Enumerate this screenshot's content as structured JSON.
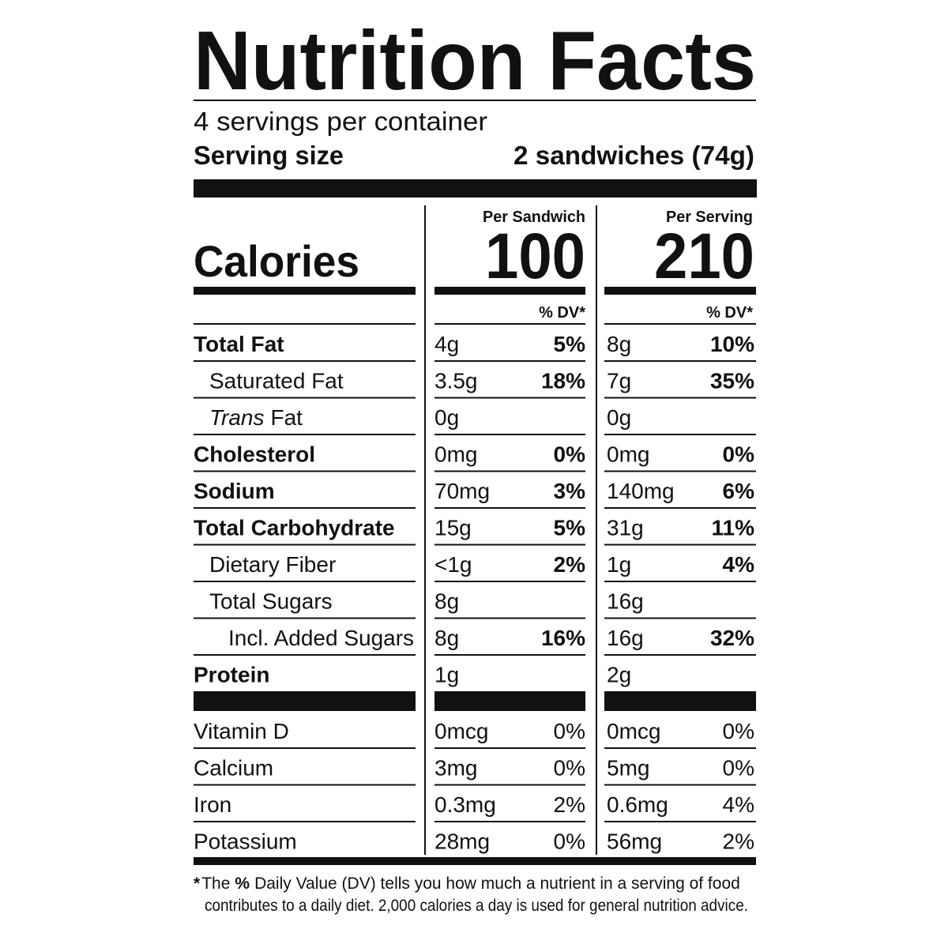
{
  "title": "Nutrition Facts",
  "servings_per_container": "4 servings per container",
  "serving_size": {
    "label": "Serving size",
    "value": "2 sandwiches (74g)"
  },
  "calories": {
    "label": "Calories",
    "columns": [
      {
        "header": "Per Sandwich",
        "value": 100
      },
      {
        "header": "Per Serving",
        "value": 210
      }
    ]
  },
  "dv_header": [
    "% DV*",
    "% DV*"
  ],
  "nutrients": [
    {
      "name": "Total Fat",
      "bold": true,
      "indent": 0,
      "columns": [
        {
          "amount": "4g",
          "dv": "5%"
        },
        {
          "amount": "8g",
          "dv": "10%"
        }
      ]
    },
    {
      "name": "Saturated Fat",
      "bold": false,
      "indent": 1,
      "columns": [
        {
          "amount": "3.5g",
          "dv": "18%"
        },
        {
          "amount": "7g",
          "dv": "35%"
        }
      ]
    },
    {
      "name_italic": "Trans",
      "name": "Fat",
      "bold": false,
      "indent": 1,
      "columns": [
        {
          "amount": "0g"
        },
        {
          "amount": "0g"
        }
      ]
    },
    {
      "name": "Cholesterol",
      "bold": true,
      "indent": 0,
      "columns": [
        {
          "amount": "0mg",
          "dv": "0%"
        },
        {
          "amount": "0mg",
          "dv": "0%"
        }
      ]
    },
    {
      "name": "Sodium",
      "bold": true,
      "indent": 0,
      "columns": [
        {
          "amount": "70mg",
          "dv": "3%"
        },
        {
          "amount": "140mg",
          "dv": "6%"
        }
      ]
    },
    {
      "name": "Total Carbohydrate",
      "bold": true,
      "indent": 0,
      "columns": [
        {
          "amount": "15g",
          "dv": "5%"
        },
        {
          "amount": "31g",
          "dv": "11%"
        }
      ]
    },
    {
      "name": "Dietary Fiber",
      "bold": false,
      "indent": 1,
      "columns": [
        {
          "amount": "<1g",
          "dv": "2%"
        },
        {
          "amount": "1g",
          "dv": "4%"
        }
      ]
    },
    {
      "name": "Total Sugars",
      "bold": false,
      "indent": 1,
      "columns": [
        {
          "amount": "8g"
        },
        {
          "amount": "16g"
        }
      ]
    },
    {
      "name": "Incl. Added Sugars",
      "bold": false,
      "indent": 2,
      "columns": [
        {
          "amount": "8g",
          "dv": "16%"
        },
        {
          "amount": "16g",
          "dv": "32%"
        }
      ]
    },
    {
      "name": "Protein",
      "bold": true,
      "indent": 0,
      "columns": [
        {
          "amount": "1g"
        },
        {
          "amount": "2g"
        }
      ]
    }
  ],
  "vitamins": [
    {
      "name": "Vitamin D",
      "columns": [
        {
          "amount": "0mcg",
          "dv": "0%"
        },
        {
          "amount": "0mcg",
          "dv": "0%"
        }
      ]
    },
    {
      "name": "Calcium",
      "columns": [
        {
          "amount": "3mg",
          "dv": "0%"
        },
        {
          "amount": "5mg",
          "dv": "0%"
        }
      ]
    },
    {
      "name": "Iron",
      "columns": [
        {
          "amount": "0.3mg",
          "dv": "2%"
        },
        {
          "amount": "0.6mg",
          "dv": "4%"
        }
      ]
    },
    {
      "name": "Potassium",
      "columns": [
        {
          "amount": "28mg",
          "dv": "0%"
        },
        {
          "amount": "56mg",
          "dv": "2%"
        }
      ]
    }
  ],
  "footnote": {
    "marker": "*",
    "before": "The",
    "bold": "%",
    "after": "Daily Value (DV) tells you how much a nutrient in a serving of food",
    "line2": "contributes to a daily diet. 2,000 calories a day is used for general nutrition advice."
  }
}
